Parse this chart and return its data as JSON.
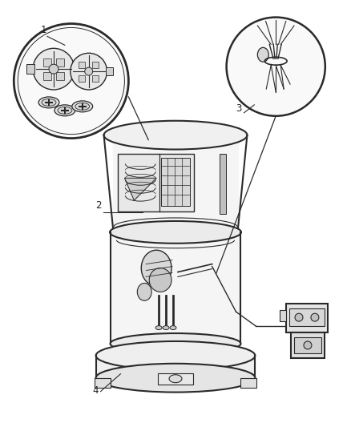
{
  "background_color": "#ffffff",
  "line_color": "#2a2a2a",
  "label_color": "#222222",
  "fig_w": 4.38,
  "fig_h": 5.33,
  "dpi": 100
}
